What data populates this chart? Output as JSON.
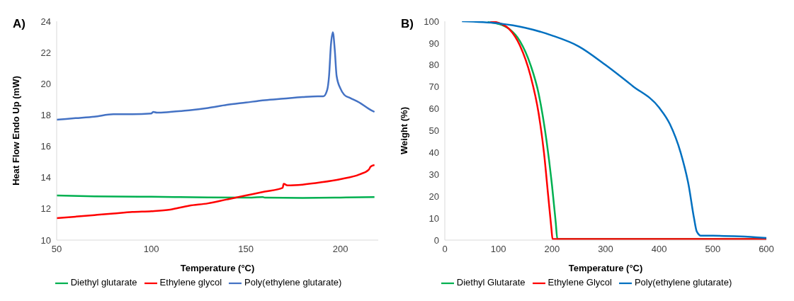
{
  "chart_data": [
    {
      "type": "line",
      "title": "A)",
      "xlabel": "Temperature (°C)",
      "ylabel": "Heat Flow Endo Up (mW)",
      "xlim": [
        50,
        220
      ],
      "xticks": [
        50,
        100,
        150,
        200
      ],
      "ylim": [
        10,
        24
      ],
      "yticks": [
        10,
        12,
        14,
        16,
        18,
        20,
        22,
        24
      ],
      "grid": false,
      "legend": "bottom",
      "marker": "none",
      "line_style": "solid",
      "series": [
        {
          "name": "Diethyl glutarate",
          "color": "#00b050",
          "x": [
            50,
            70,
            100,
            130,
            150,
            159,
            160,
            180,
            200,
            218
          ],
          "values": [
            12.85,
            12.8,
            12.77,
            12.73,
            12.72,
            12.75,
            12.72,
            12.7,
            12.72,
            12.75
          ]
        },
        {
          "name": "Ethylene glycol",
          "color": "#ff0000",
          "x": [
            50,
            60,
            70,
            80,
            90,
            100,
            110,
            120,
            130,
            140,
            150,
            160,
            169.5,
            170,
            172,
            180,
            190,
            200,
            210,
            215,
            216,
            218
          ],
          "values": [
            11.4,
            11.5,
            11.6,
            11.7,
            11.8,
            11.85,
            11.95,
            12.2,
            12.35,
            12.6,
            12.85,
            13.1,
            13.35,
            13.6,
            13.5,
            13.55,
            13.7,
            13.9,
            14.2,
            14.5,
            14.7,
            14.8
          ]
        },
        {
          "name": "Poly(ethylene glutarate)",
          "color": "#4472c4",
          "x": [
            50,
            60,
            70,
            80,
            90,
            100,
            101,
            103,
            110,
            120,
            130,
            140,
            150,
            160,
            170,
            180,
            188,
            191,
            193,
            194,
            195,
            196,
            197,
            198,
            200,
            202,
            205,
            210,
            215,
            218
          ],
          "values": [
            17.7,
            17.8,
            17.9,
            18.05,
            18.05,
            18.1,
            18.2,
            18.15,
            18.2,
            18.3,
            18.45,
            18.65,
            18.8,
            18.95,
            19.05,
            19.15,
            19.2,
            19.2,
            19.6,
            20.5,
            22.5,
            23.3,
            22.2,
            20.5,
            19.7,
            19.3,
            19.1,
            18.8,
            18.4,
            18.2
          ]
        }
      ]
    },
    {
      "type": "line",
      "title": "B)",
      "xlabel": "Temperature (°C)",
      "ylabel": "Weight (%)",
      "xlim": [
        0,
        600
      ],
      "xticks": [
        0,
        100,
        200,
        300,
        400,
        500,
        600
      ],
      "ylim": [
        0,
        100
      ],
      "yticks": [
        0,
        10,
        20,
        30,
        40,
        50,
        60,
        70,
        80,
        90,
        100
      ],
      "grid": false,
      "legend": "bottom",
      "marker": "none",
      "line_style": "solid",
      "series": [
        {
          "name": "Diethyl Glutarate",
          "color": "#00b050",
          "x": [
            80,
            100,
            120,
            140,
            160,
            175,
            190,
            200,
            207,
            210,
            600
          ],
          "values": [
            99.6,
            98.8,
            96.5,
            91,
            80,
            67,
            45,
            25,
            8,
            0.5,
            0.5
          ]
        },
        {
          "name": "Ethylene Glycol",
          "color": "#ff0000",
          "x": [
            85,
            100,
            120,
            140,
            160,
            175,
            185,
            193,
            199,
            201,
            300,
            600
          ],
          "values": [
            100,
            99.3,
            96.5,
            89,
            75,
            58,
            40,
            20,
            5,
            0.5,
            0.5,
            0.5
          ]
        },
        {
          "name": "Poly(ethylene glutarate)",
          "color": "#0070c0",
          "x": [
            32,
            100,
            150,
            200,
            250,
            300,
            350,
            400,
            420,
            440,
            455,
            465,
            470,
            478,
            500,
            550,
            600
          ],
          "values": [
            100,
            99,
            97,
            93.5,
            88.5,
            80,
            70.5,
            60.5,
            53,
            40,
            25,
            10,
            4,
            2,
            2,
            1.7,
            1
          ]
        }
      ]
    }
  ]
}
